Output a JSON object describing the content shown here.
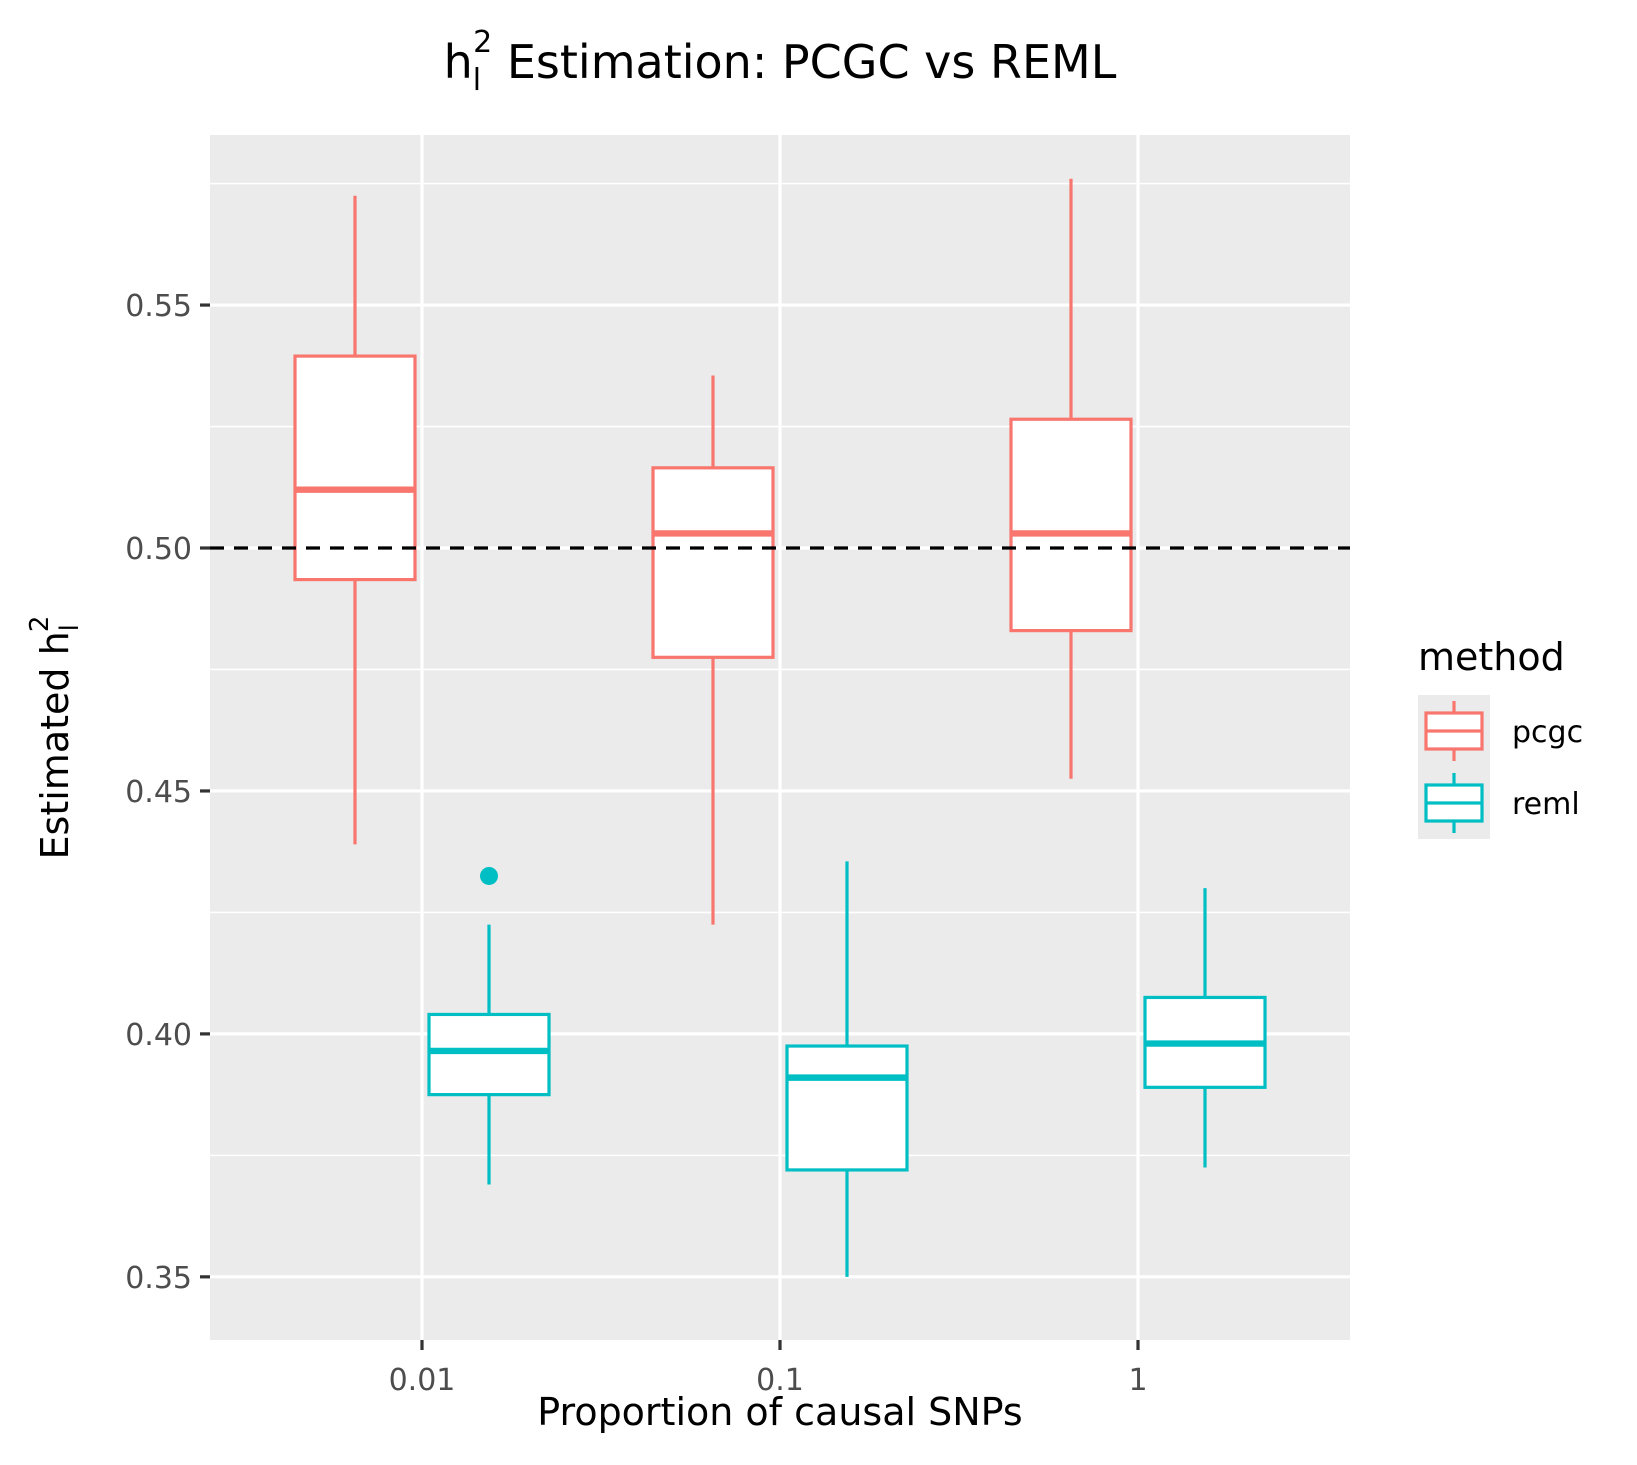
{
  "chart_data": {
    "type": "boxplot",
    "title": {
      "main": "h",
      "sub": "l",
      "sup": "2",
      "rest": " Estimation: PCGC vs REML"
    },
    "xlabel": "Proportion of causal SNPs",
    "ylabel": {
      "main": "Estimated h",
      "sub": "l",
      "sup": "2"
    },
    "categories": [
      "0.01",
      "0.1",
      "1"
    ],
    "ylim": [
      0.337,
      0.585
    ],
    "yticks": [
      0.35,
      0.4,
      0.45,
      0.5,
      0.55
    ],
    "ytick_labels": [
      "0.35",
      "0.40",
      "0.45",
      "0.50",
      "0.55"
    ],
    "reference_line": {
      "y": 0.5,
      "style": "dashed",
      "color": "#000000"
    },
    "grid": true,
    "panel_background": "#ebebeb",
    "legend": {
      "title": "method",
      "position": "right",
      "entries": [
        {
          "label": "pcgc",
          "color": "#F8766D"
        },
        {
          "label": "reml",
          "color": "#00BFC4"
        }
      ]
    },
    "series": [
      {
        "name": "pcgc",
        "color": "#F8766D",
        "boxes": [
          {
            "category": "0.01",
            "min": 0.439,
            "q1": 0.4935,
            "median": 0.512,
            "q3": 0.5395,
            "max": 0.5725,
            "outliers": []
          },
          {
            "category": "0.1",
            "min": 0.4225,
            "q1": 0.4775,
            "median": 0.503,
            "q3": 0.5165,
            "max": 0.5355,
            "outliers": []
          },
          {
            "category": "1",
            "min": 0.4525,
            "q1": 0.483,
            "median": 0.503,
            "q3": 0.5265,
            "max": 0.576,
            "outliers": []
          }
        ]
      },
      {
        "name": "reml",
        "color": "#00BFC4",
        "boxes": [
          {
            "category": "0.01",
            "min": 0.369,
            "q1": 0.3875,
            "median": 0.3965,
            "q3": 0.404,
            "max": 0.4225,
            "outliers": [
              0.4325
            ]
          },
          {
            "category": "0.1",
            "min": 0.35,
            "q1": 0.372,
            "median": 0.391,
            "q3": 0.3975,
            "max": 0.4355,
            "outliers": []
          },
          {
            "category": "1",
            "min": 0.3725,
            "q1": 0.389,
            "median": 0.398,
            "q3": 0.4075,
            "max": 0.43,
            "outliers": []
          }
        ]
      }
    ]
  }
}
